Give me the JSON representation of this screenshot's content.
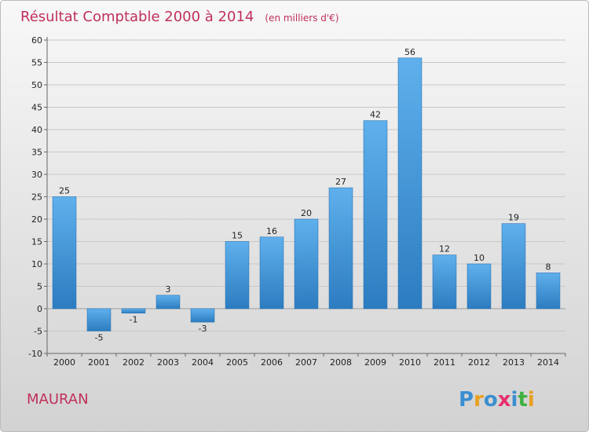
{
  "chart_data": {
    "type": "bar",
    "title": "Résultat Comptable 2000 à 2014",
    "subtitle": "(en milliers d'€)",
    "categories": [
      "2000",
      "2001",
      "2002",
      "2003",
      "2004",
      "2005",
      "2006",
      "2007",
      "2008",
      "2009",
      "2010",
      "2011",
      "2012",
      "2013",
      "2014"
    ],
    "values": [
      25,
      -5,
      -1,
      3,
      -3,
      15,
      16,
      20,
      27,
      42,
      56,
      12,
      10,
      19,
      8
    ],
    "value_labels": [
      "25",
      "-5",
      "-1",
      "3",
      "-3",
      "15",
      "16",
      "20",
      "27",
      "42",
      "56",
      "12",
      "10",
      "19",
      "8"
    ],
    "y_ticks": [
      -10,
      -5,
      0,
      5,
      10,
      15,
      20,
      25,
      30,
      35,
      40,
      45,
      50,
      55,
      60
    ],
    "y_tick_labels": [
      "-10",
      "-5",
      "0",
      "5",
      "10",
      "15",
      "20",
      "25",
      "30",
      "35",
      "40",
      "45",
      "50",
      "55",
      "60"
    ],
    "ylim": [
      -10,
      60
    ],
    "xlabel": "",
    "ylabel": "",
    "grid": true,
    "bar_color": "#4a9fe0"
  },
  "footer": {
    "commune": "MAURAN",
    "logo_letters": [
      "P",
      "r",
      "o",
      "x",
      "i",
      "t",
      "i"
    ],
    "logo_colors": [
      "#3a8fd0",
      "#e8a020",
      "#3a8fd0",
      "#e83070",
      "#3a8fd0",
      "#40b040",
      "#e8a020"
    ]
  }
}
